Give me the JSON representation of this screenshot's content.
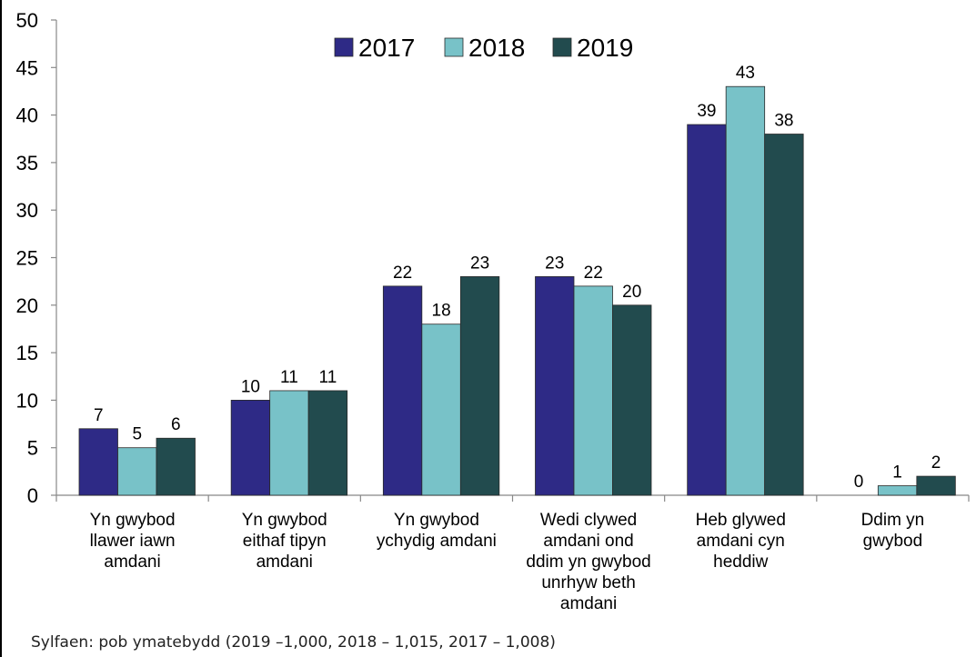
{
  "chart_data": {
    "type": "bar",
    "categories": [
      [
        "Yn gwybod",
        "llawer iawn",
        "amdani"
      ],
      [
        "Yn gwybod",
        "eithaf tipyn",
        "amdani"
      ],
      [
        "Yn gwybod",
        "ychydig amdani"
      ],
      [
        "Wedi clywed",
        "amdani ond",
        "ddim yn gwybod",
        "unrhyw beth",
        "amdani"
      ],
      [
        "Heb glywed",
        "amdani cyn",
        "heddiw"
      ],
      [
        "Ddim yn",
        "gwybod"
      ]
    ],
    "series": [
      {
        "name": "2017",
        "color": "#2E2A86",
        "values": [
          7,
          10,
          22,
          23,
          39,
          0
        ]
      },
      {
        "name": "2018",
        "color": "#78C2C8",
        "values": [
          5,
          11,
          18,
          22,
          43,
          1
        ]
      },
      {
        "name": "2019",
        "color": "#224B4E",
        "values": [
          6,
          11,
          23,
          20,
          38,
          2
        ]
      }
    ],
    "ylim": [
      0,
      50
    ],
    "yticks": [
      0,
      5,
      10,
      15,
      20,
      25,
      30,
      35,
      40,
      45,
      50
    ],
    "legend_position": "top-center",
    "grid": false
  },
  "footnote": "Sylfaen: pob ymatebydd (2019 –1,000, 2018 – 1,015, 2017 – 1,008)"
}
